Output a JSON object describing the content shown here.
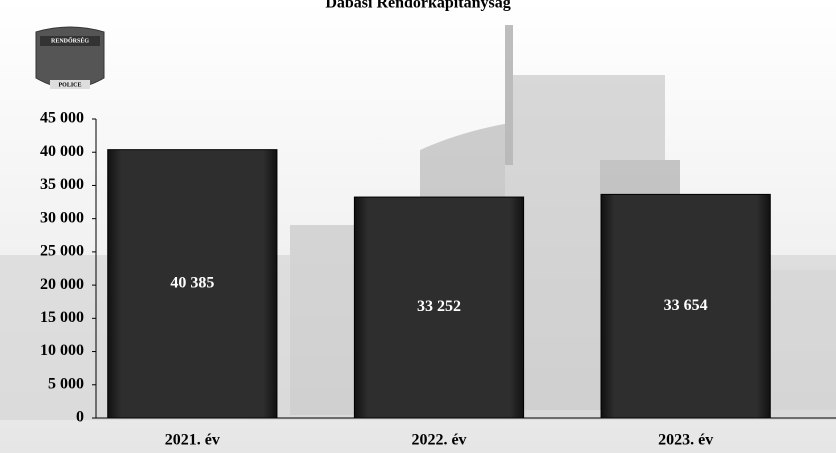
{
  "chart_data": {
    "type": "bar",
    "title": "Dabasi Rendőrkapitányság",
    "categories": [
      "2021. év",
      "2022. év",
      "2023. év"
    ],
    "values": [
      40385,
      33252,
      33654
    ],
    "value_labels": [
      "40 385",
      "33 252",
      "33 654"
    ],
    "color": "#2a2a2a",
    "ylim": [
      0,
      45000
    ],
    "yticks": [
      0,
      {
        "value": 5000,
        "label": "5 000"
      },
      {
        "value": 10000,
        "label": "10 000"
      },
      {
        "value": 15000,
        "label": "15 000"
      },
      {
        "value": 20000,
        "label": "20 000"
      },
      {
        "value": 25000,
        "label": "25 000"
      },
      {
        "value": 30000,
        "label": "30 000"
      },
      {
        "value": 35000,
        "label": "35 000"
      },
      {
        "value": 40000,
        "label": "40 000"
      },
      {
        "value": 45000,
        "label": "45 000"
      }
    ]
  },
  "logo": {
    "top_text": "RENDŐRSÉG",
    "bottom_text": "POLICE"
  }
}
